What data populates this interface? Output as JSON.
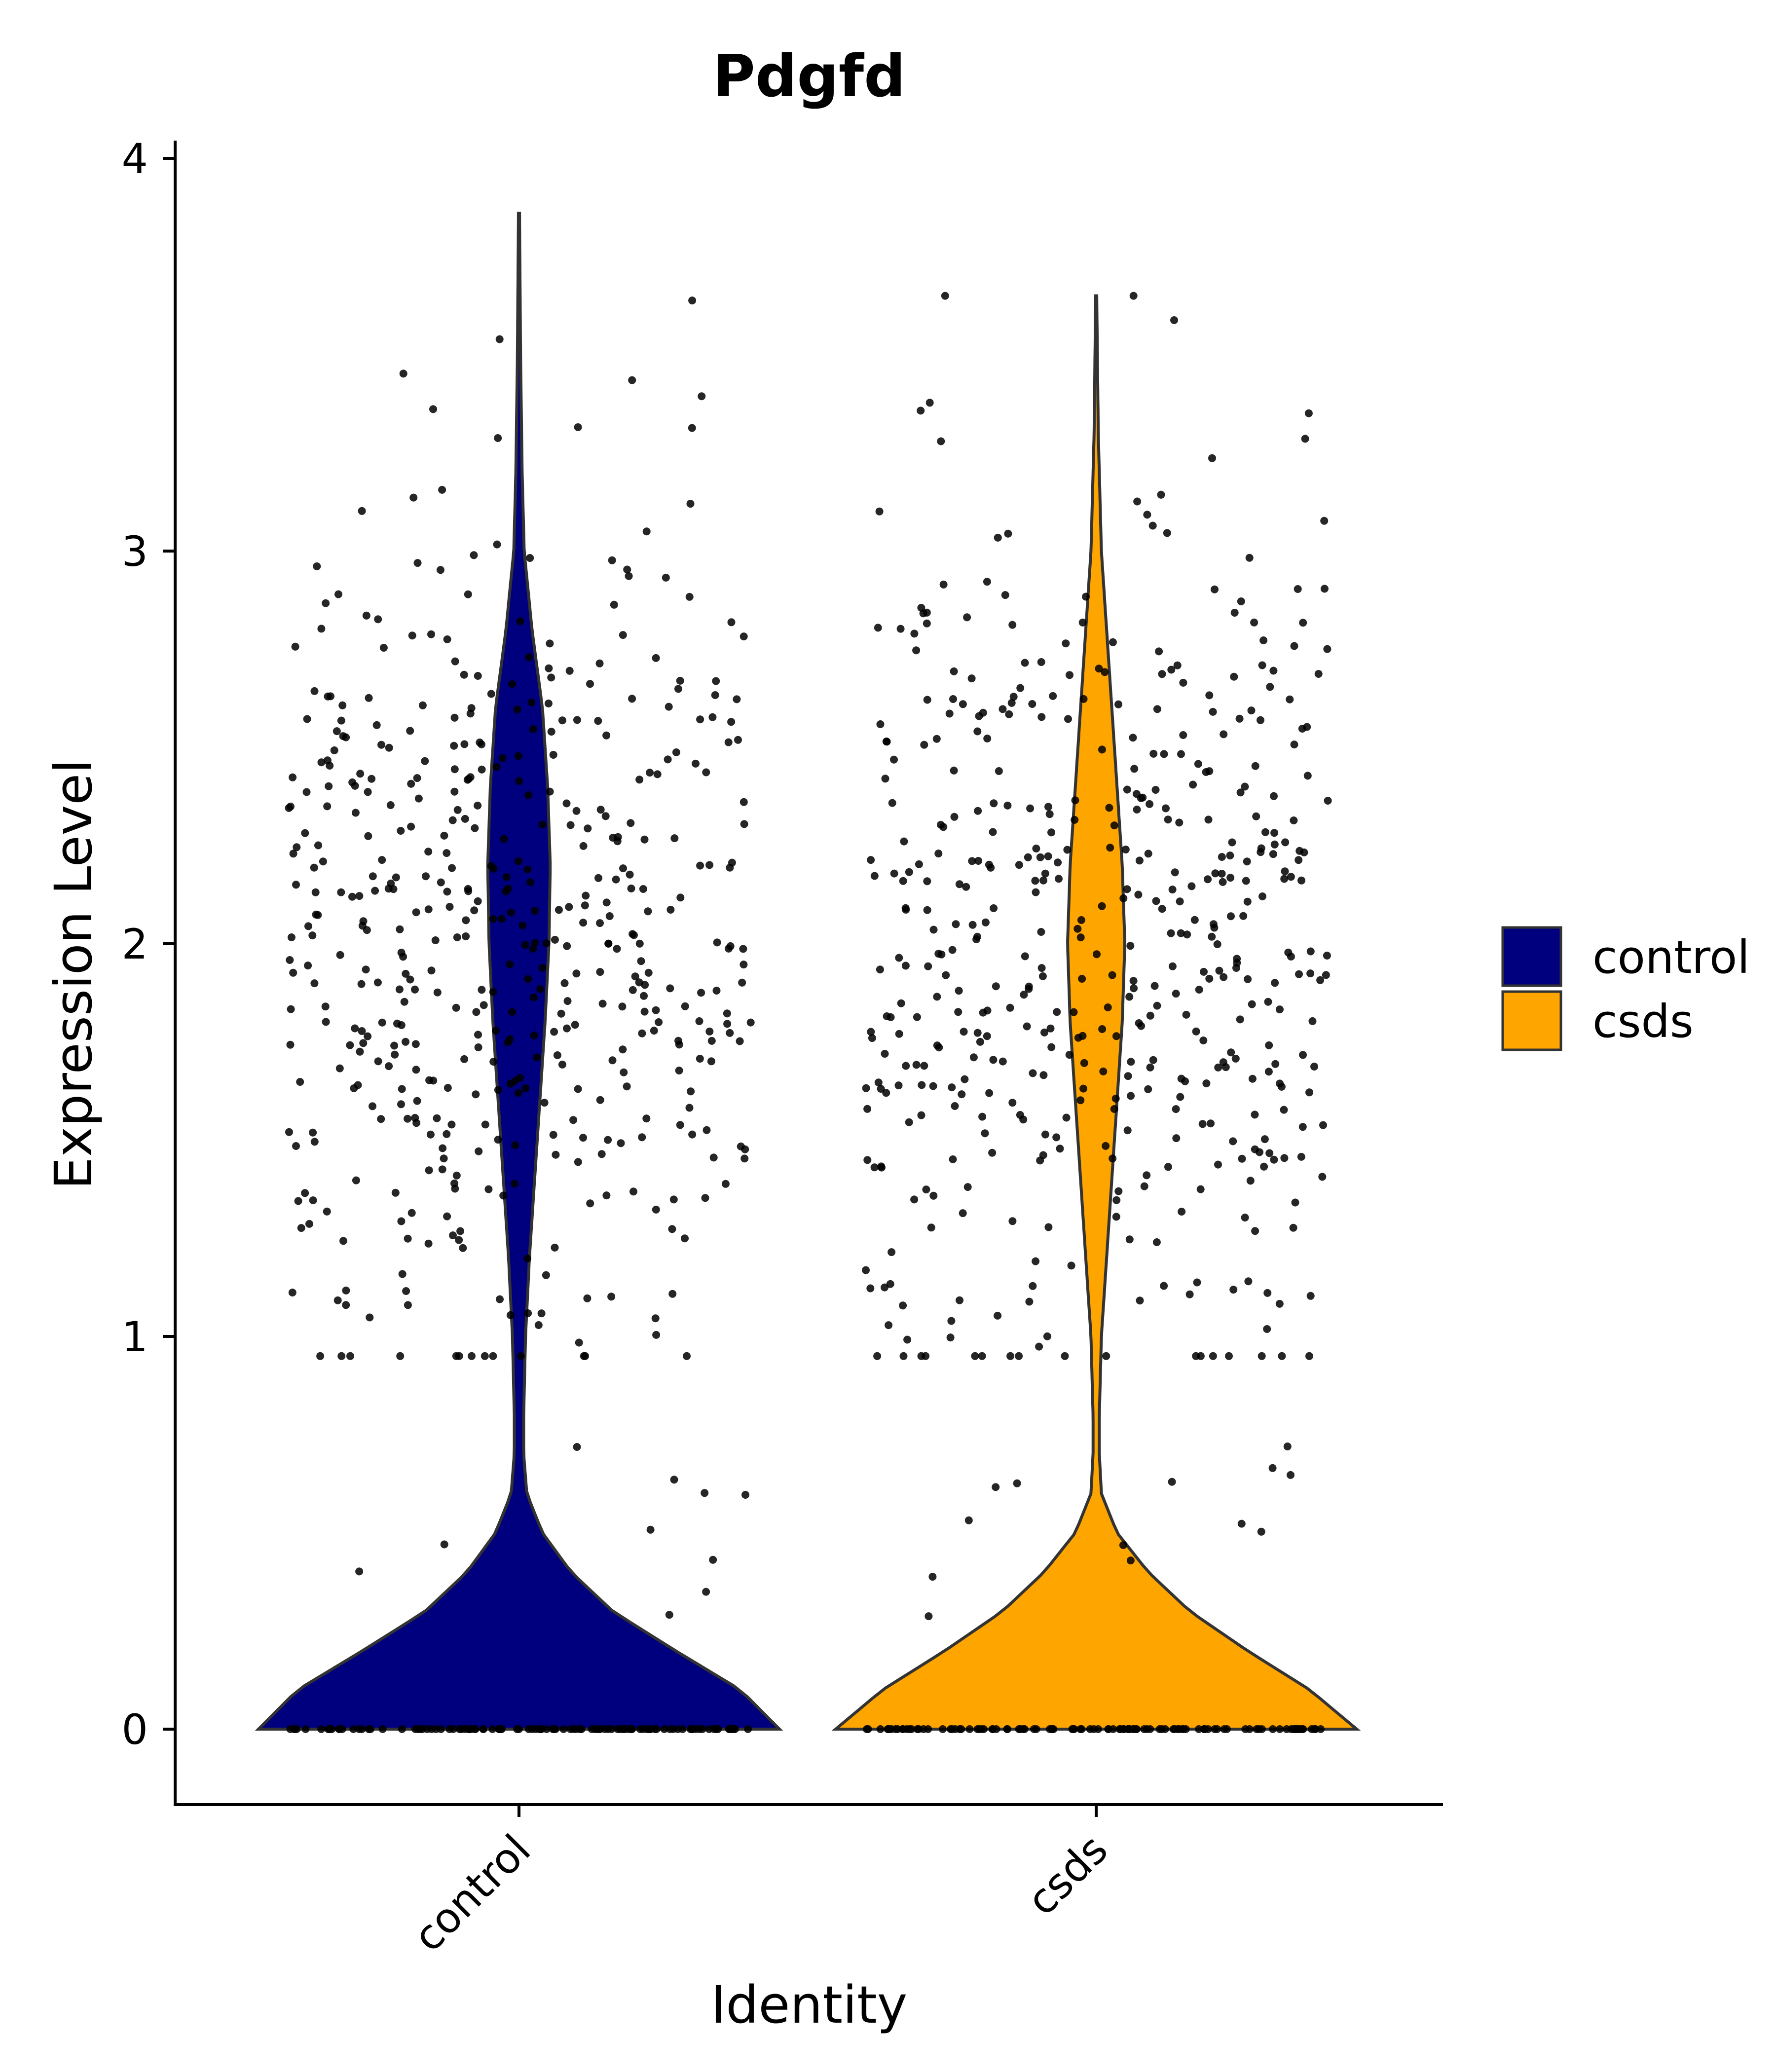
{
  "chart_data": {
    "type": "violin",
    "title": "Pdgfd",
    "xlabel": "Identity",
    "ylabel": "Expression Level",
    "categories": [
      "control",
      "csds"
    ],
    "ylim": [
      -0.19,
      4.05
    ],
    "yticks": [
      0,
      1,
      2,
      3,
      4
    ],
    "grid": false,
    "legend": {
      "position": "right",
      "entries": [
        "control",
        "csds"
      ]
    },
    "series": [
      {
        "name": "control",
        "color": "#00007f",
        "max": 3.86,
        "density": [
          [
            0,
            1.0
          ],
          [
            0.1,
            0.85
          ],
          [
            0.2,
            0.6
          ],
          [
            0.3,
            0.36
          ],
          [
            0.4,
            0.2
          ],
          [
            0.5,
            0.09
          ],
          [
            0.6,
            0.03
          ],
          [
            0.7,
            0.018
          ],
          [
            0.8,
            0.018
          ],
          [
            1.0,
            0.025
          ],
          [
            1.2,
            0.04
          ],
          [
            1.4,
            0.06
          ],
          [
            1.6,
            0.08
          ],
          [
            1.8,
            0.1
          ],
          [
            2.0,
            0.115
          ],
          [
            2.2,
            0.12
          ],
          [
            2.4,
            0.11
          ],
          [
            2.6,
            0.09
          ],
          [
            2.8,
            0.05
          ],
          [
            3.0,
            0.02
          ],
          [
            3.2,
            0.012
          ],
          [
            3.5,
            0.006
          ],
          [
            3.86,
            0.002
          ]
        ]
      },
      {
        "name": "csds",
        "color": "#ffa500",
        "max": 3.65,
        "density": [
          [
            0,
            1.0
          ],
          [
            0.1,
            0.82
          ],
          [
            0.2,
            0.58
          ],
          [
            0.3,
            0.36
          ],
          [
            0.4,
            0.2
          ],
          [
            0.5,
            0.08
          ],
          [
            0.6,
            0.02
          ],
          [
            0.7,
            0.012
          ],
          [
            0.8,
            0.012
          ],
          [
            1.0,
            0.02
          ],
          [
            1.2,
            0.04
          ],
          [
            1.4,
            0.06
          ],
          [
            1.6,
            0.08
          ],
          [
            1.8,
            0.1
          ],
          [
            2.0,
            0.11
          ],
          [
            2.2,
            0.1
          ],
          [
            2.4,
            0.08
          ],
          [
            2.6,
            0.06
          ],
          [
            2.8,
            0.04
          ],
          [
            3.0,
            0.02
          ],
          [
            3.3,
            0.008
          ],
          [
            3.65,
            0.002
          ]
        ]
      }
    ],
    "points_per_group": {
      "zero": 110,
      "nonzero": 500
    }
  }
}
